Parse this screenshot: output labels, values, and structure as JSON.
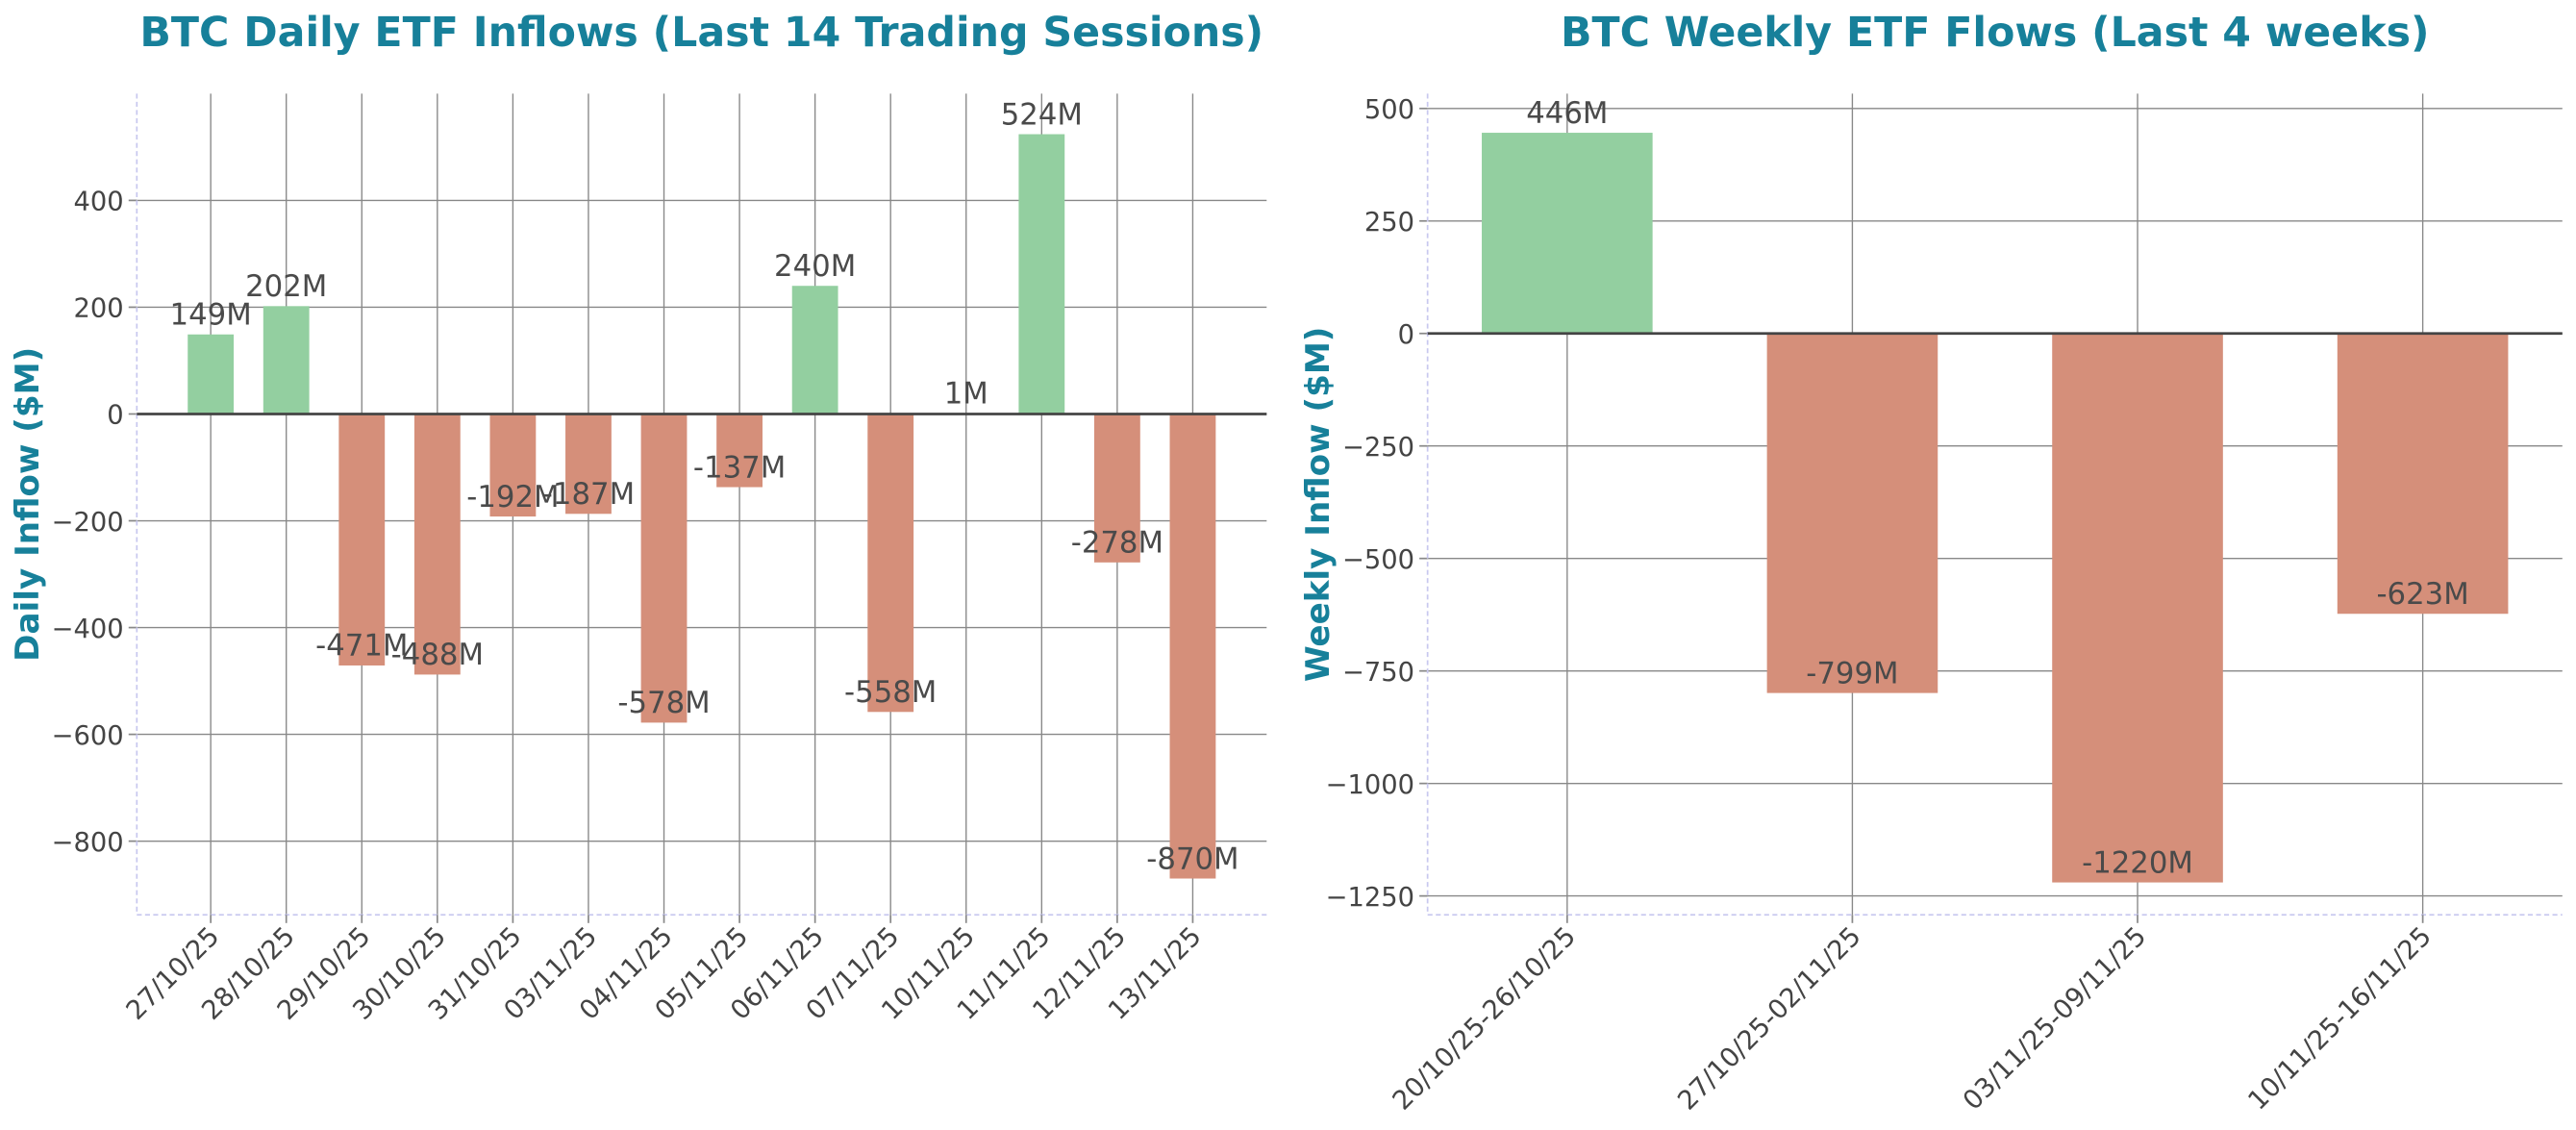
{
  "chart_data": [
    {
      "type": "bar",
      "title": "BTC Daily ETF Inflows (Last 14 Trading Sessions)",
      "y_label": "Daily Inflow ($M)",
      "categories": [
        "27/10/25",
        "28/10/25",
        "29/10/25",
        "30/10/25",
        "31/10/25",
        "03/11/25",
        "04/11/25",
        "05/11/25",
        "06/11/25",
        "07/11/25",
        "10/11/25",
        "11/11/25",
        "12/11/25",
        "13/11/25"
      ],
      "values": [
        149,
        202,
        -471,
        -488,
        -192,
        -187,
        -578,
        -137,
        240,
        -558,
        1,
        524,
        -278,
        -870
      ],
      "value_labels": [
        "149M",
        "202M",
        "-471M",
        "-488M",
        "-192M",
        "-187M",
        "-578M",
        "-137M",
        "240M",
        "-558M",
        "1M",
        "524M",
        "-278M",
        "-870M"
      ],
      "positive_color": "#93cfa0",
      "negative_color": "#d58f7a",
      "ylim": [
        -938,
        600
      ],
      "yticks": [
        {
          "value": -800,
          "label": "−800"
        },
        {
          "value": -600,
          "label": "−600"
        },
        {
          "value": -400,
          "label": "−400"
        },
        {
          "value": -200,
          "label": "−200"
        },
        0,
        200,
        400
      ],
      "grid": true
    },
    {
      "type": "bar",
      "title": "BTC Weekly ETF Flows (Last 4 weeks)",
      "y_label": "Weekly Inflow ($M)",
      "categories": [
        "20/10/25-26/10/25",
        "27/10/25-02/11/25",
        "03/11/25-09/11/25",
        "10/11/25-16/11/25"
      ],
      "values": [
        446,
        -799,
        -1220,
        -623
      ],
      "value_labels": [
        "446M",
        "-799M",
        "-1220M",
        "-623M"
      ],
      "positive_color": "#93cfa0",
      "negative_color": "#d58f7a",
      "ylim": [
        -1292,
        533
      ],
      "yticks": [
        {
          "value": -1250,
          "label": "−1250"
        },
        {
          "value": -1000,
          "label": "−1000"
        },
        {
          "value": -750,
          "label": "−750"
        },
        {
          "value": -500,
          "label": "−500"
        },
        {
          "value": -250,
          "label": "−250"
        },
        0,
        250,
        500
      ],
      "grid": true
    }
  ]
}
